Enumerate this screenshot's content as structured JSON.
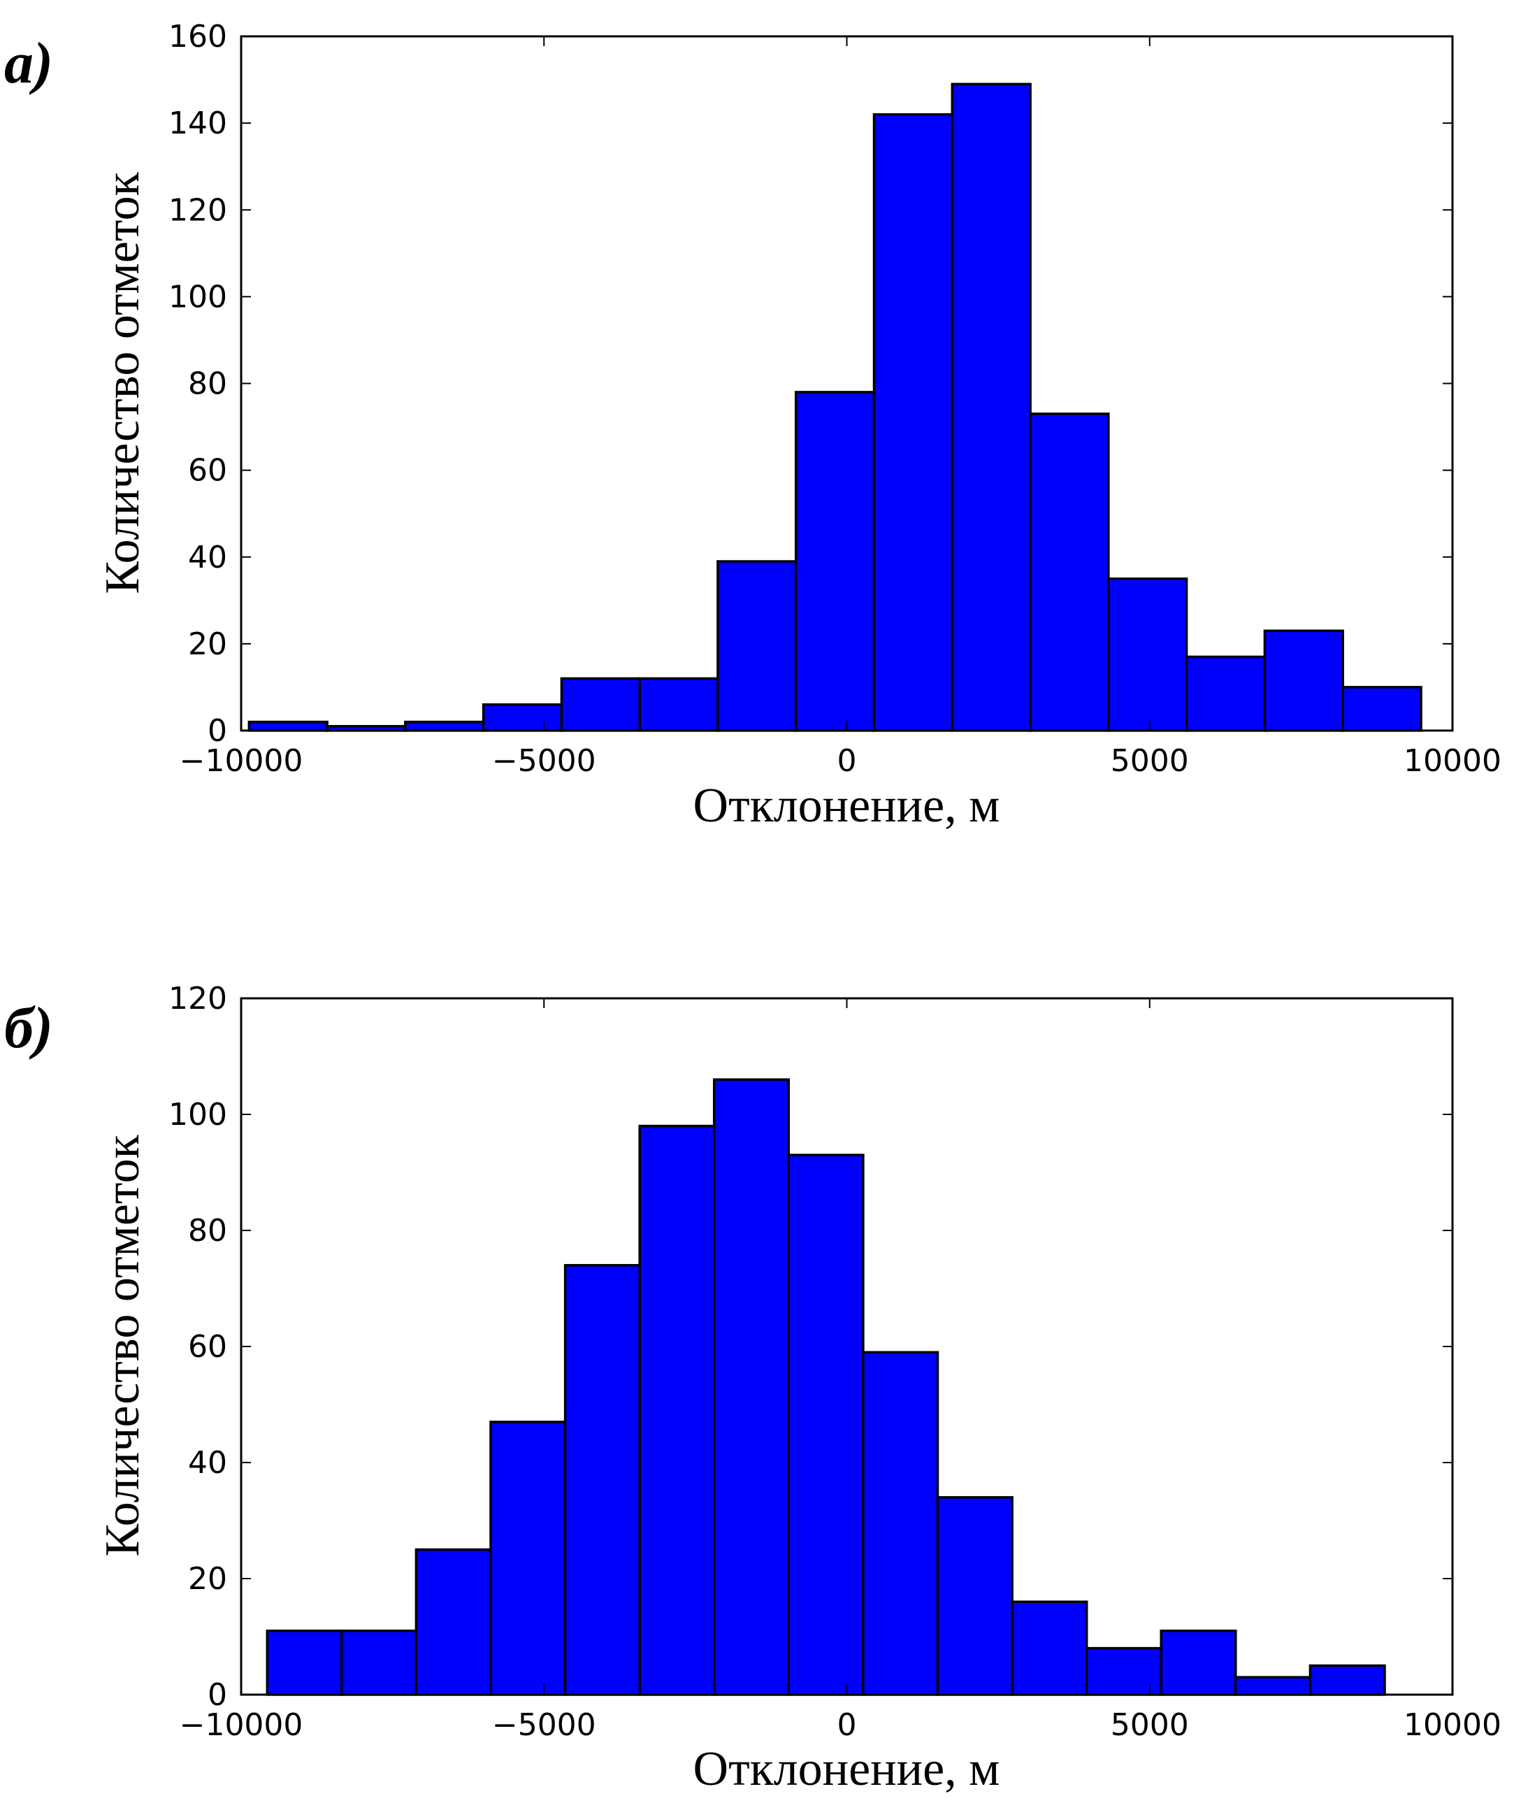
{
  "chart_data": [
    {
      "type": "bar",
      "panel_label": "а)",
      "xlabel": "Отклонение, м",
      "ylabel": "Количество отметок",
      "xlim": [
        -10000,
        10000
      ],
      "ylim": [
        0,
        160
      ],
      "xticks": [
        -10000,
        -5000,
        0,
        5000,
        10000
      ],
      "xtick_labels": [
        "−10000",
        "−5000",
        "0",
        "5000",
        "10000"
      ],
      "yticks": [
        0,
        20,
        40,
        60,
        80,
        100,
        120,
        140,
        160
      ],
      "bar_color": "#0000ff",
      "bin_edges": [
        -9870,
        -8580,
        -7290,
        -6000,
        -4710,
        -3420,
        -2130,
        -840,
        450,
        1740,
        3030,
        4320,
        5610,
        6900,
        8190,
        9480
      ],
      "values": [
        2,
        1,
        2,
        6,
        12,
        12,
        39,
        78,
        142,
        149,
        73,
        35,
        17,
        23,
        10
      ]
    },
    {
      "type": "bar",
      "panel_label": "б)",
      "xlabel": "Отклонение, м",
      "ylabel": "Количество отметок",
      "xlim": [
        -10000,
        10000
      ],
      "ylim": [
        0,
        120
      ],
      "xticks": [
        -10000,
        -5000,
        0,
        5000,
        10000
      ],
      "xtick_labels": [
        "−10000",
        "−5000",
        "0",
        "5000",
        "10000"
      ],
      "yticks": [
        0,
        20,
        40,
        60,
        80,
        100,
        120
      ],
      "bar_color": "#0000ff",
      "bin_edges": [
        -9570,
        -8340,
        -7110,
        -5880,
        -4650,
        -3420,
        -2190,
        -960,
        270,
        1500,
        2730,
        3960,
        5190,
        6420,
        7650,
        8880
      ],
      "values": [
        11,
        11,
        25,
        47,
        74,
        98,
        106,
        93,
        59,
        34,
        16,
        8,
        11,
        3,
        5
      ]
    }
  ]
}
